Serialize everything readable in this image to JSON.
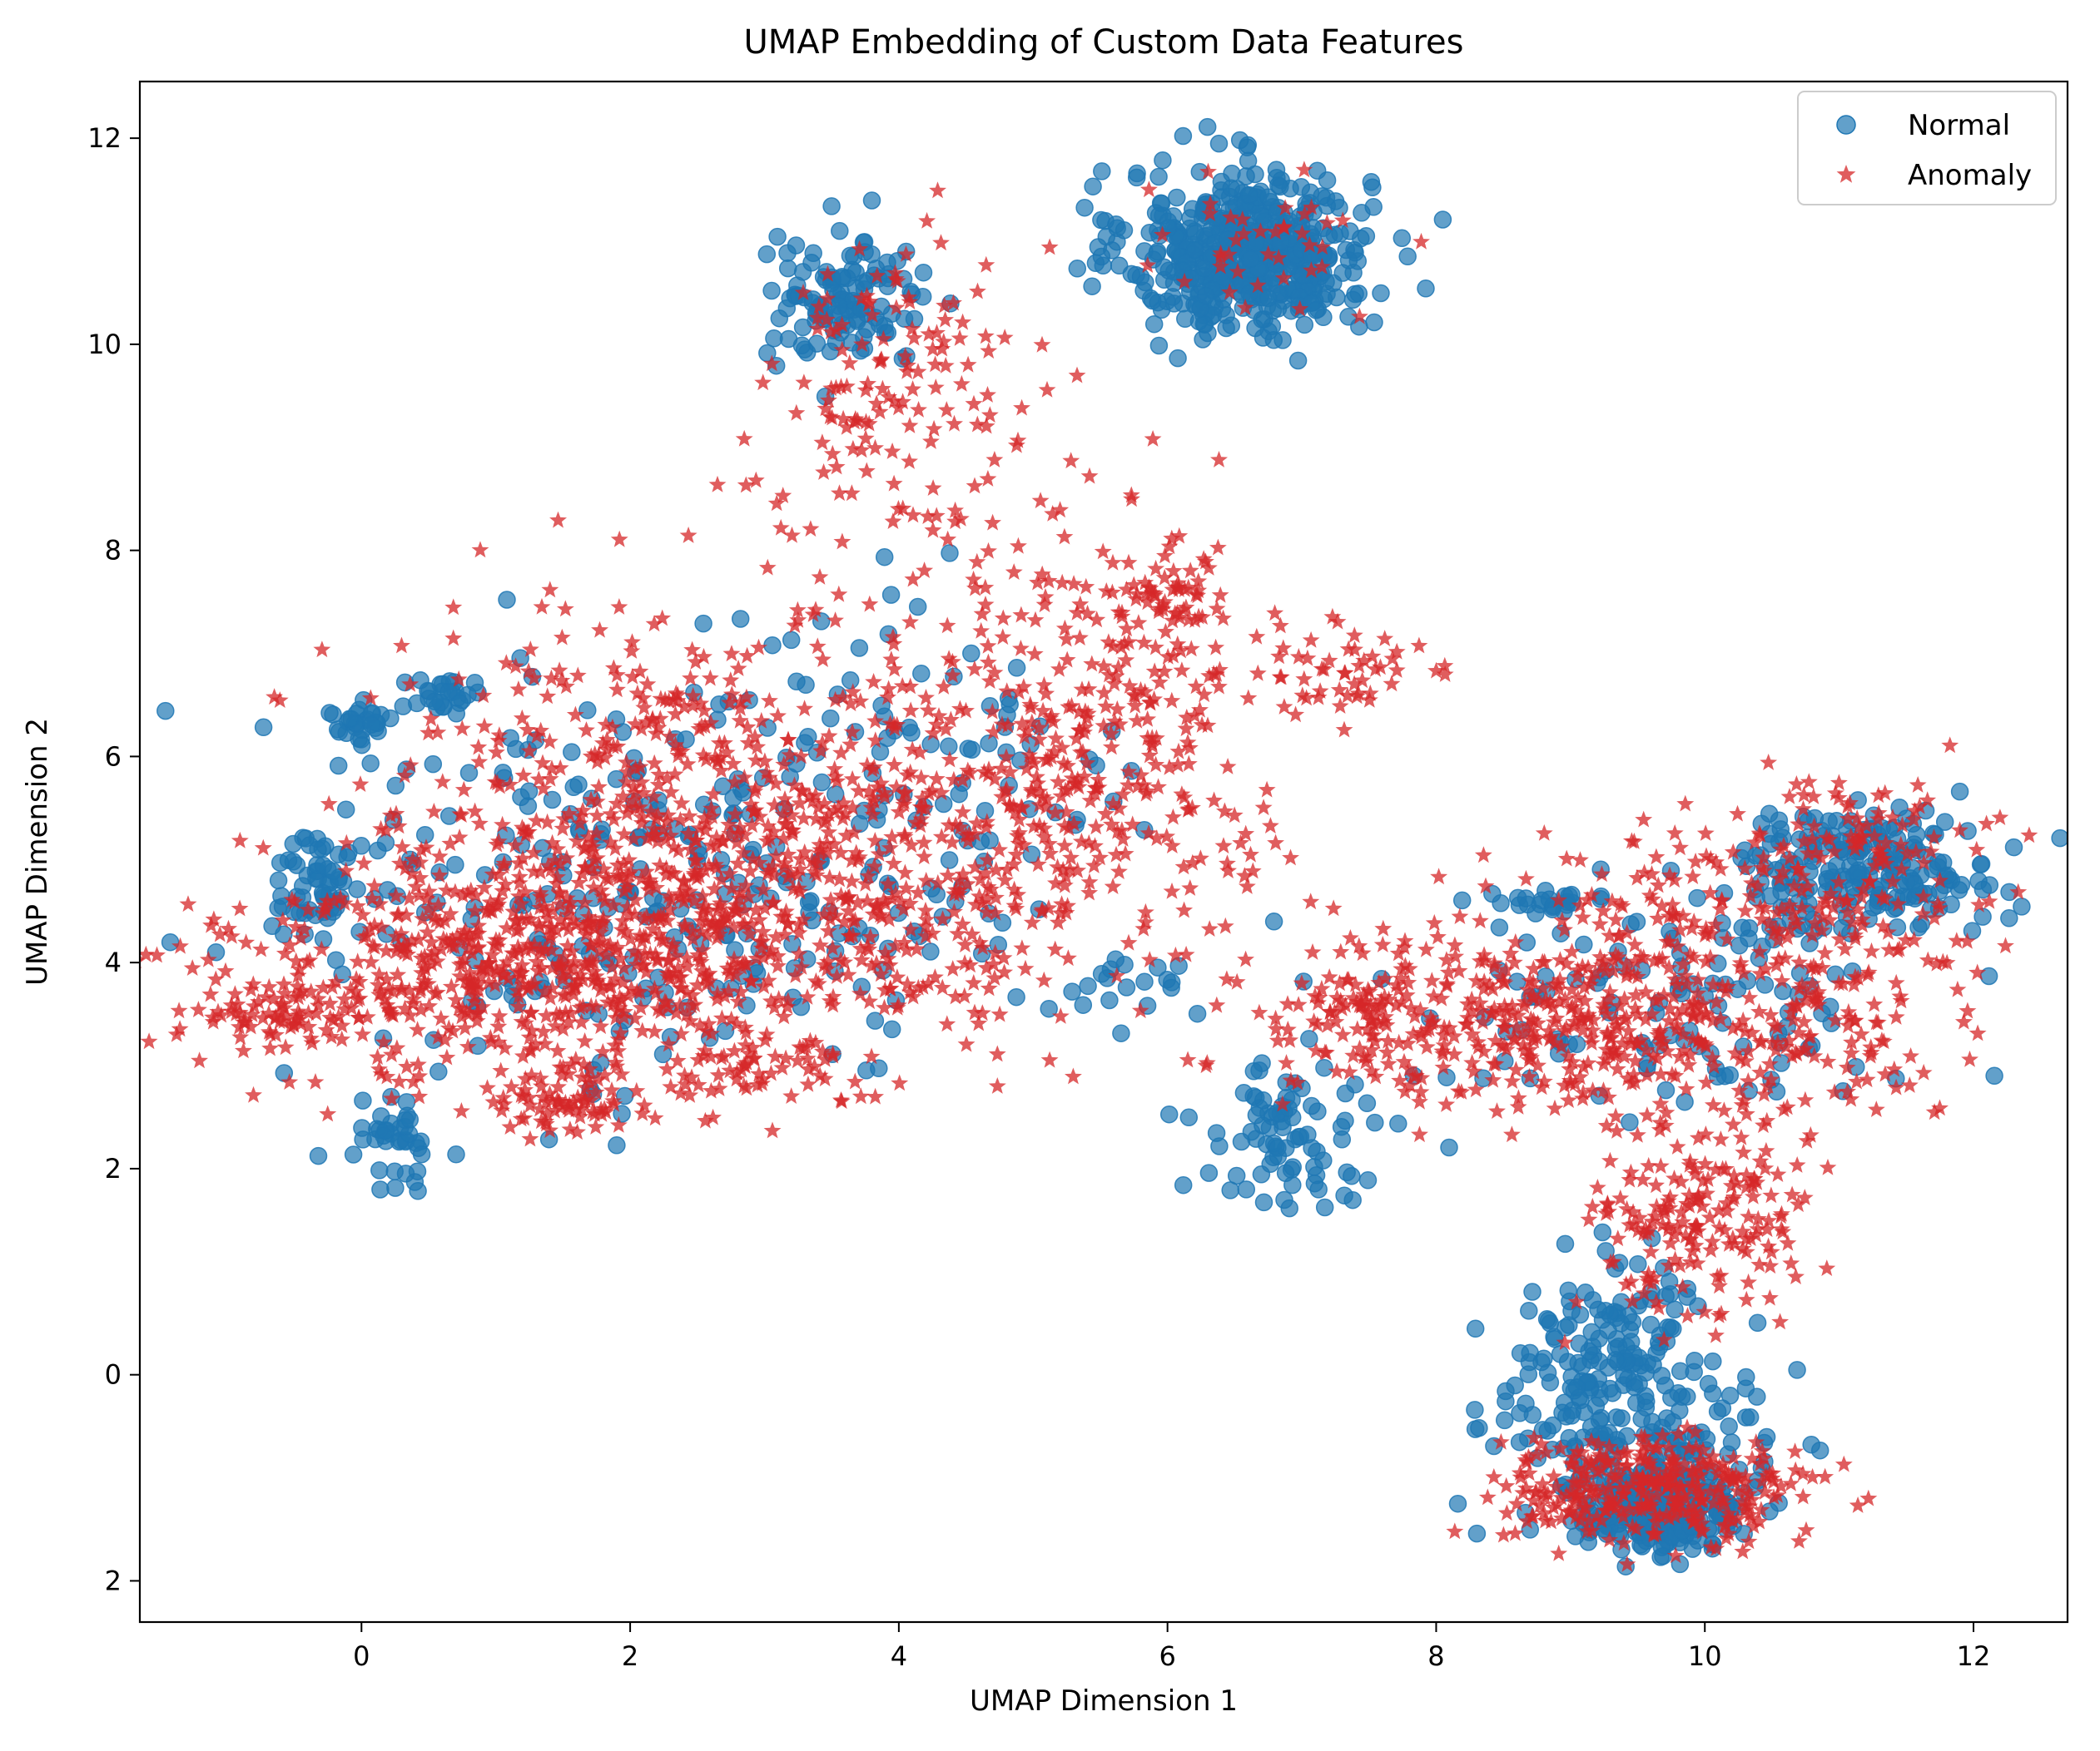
{
  "chart_data": {
    "type": "scatter",
    "title": "UMAP Embedding of Custom Data Features",
    "xlabel": "UMAP Dimension 1",
    "ylabel": "UMAP Dimension 2",
    "xlim": [
      -1.65,
      12.7
    ],
    "ylim": [
      -2.4,
      12.55
    ],
    "x_ticks": [
      0,
      2,
      4,
      6,
      8,
      10,
      12
    ],
    "y_ticks": [
      -2,
      0,
      2,
      4,
      6,
      8,
      10,
      12
    ],
    "x_tick_labels": [
      "0",
      "2",
      "4",
      "6",
      "8",
      "10",
      "12"
    ],
    "y_tick_labels": [
      "\u00022",
      "0",
      "2",
      "4",
      "6",
      "8",
      "10",
      "12"
    ],
    "grid": false,
    "legend_position": "top-right",
    "series": [
      {
        "name": "Normal",
        "marker": "circle",
        "color": "#1f77b4",
        "approximate": true,
        "clusters": [
          {
            "center": [
              6.6,
              10.9
            ],
            "spread": [
              0.45,
              0.4
            ],
            "count": 520
          },
          {
            "center": [
              11.2,
              4.9
            ],
            "spread": [
              0.5,
              0.3
            ],
            "count": 200
          },
          {
            "center": [
              9.7,
              -1.3
            ],
            "spread": [
              0.3,
              0.2
            ],
            "count": 260
          },
          {
            "center": [
              9.4,
              -0.4
            ],
            "spread": [
              0.5,
              0.5
            ],
            "count": 200
          },
          {
            "center": [
              9.3,
              0.6
            ],
            "spread": [
              0.3,
              0.3
            ],
            "count": 60
          },
          {
            "center": [
              3.6,
              10.4
            ],
            "spread": [
              0.3,
              0.3
            ],
            "count": 120
          },
          {
            "center": [
              0.0,
              6.3
            ],
            "spread": [
              0.12,
              0.12
            ],
            "count": 30
          },
          {
            "center": [
              0.6,
              6.6
            ],
            "spread": [
              0.15,
              0.08
            ],
            "count": 25
          },
          {
            "center": [
              -0.3,
              4.8
            ],
            "spread": [
              0.2,
              0.25
            ],
            "count": 60
          },
          {
            "center": [
              0.3,
              2.3
            ],
            "spread": [
              0.15,
              0.2
            ],
            "count": 40
          },
          {
            "center": [
              6.8,
              2.3
            ],
            "spread": [
              0.3,
              0.35
            ],
            "count": 70
          },
          {
            "center": [
              8.8,
              4.6
            ],
            "spread": [
              0.3,
              0.06
            ],
            "count": 20
          },
          {
            "center": [
              1.8,
              4.7
            ],
            "spread": [
              1.2,
              1.1
            ],
            "count": 220
          },
          {
            "center": [
              4.0,
              5.4
            ],
            "spread": [
              0.9,
              1.2
            ],
            "count": 120
          },
          {
            "center": [
              9.5,
              3.6
            ],
            "spread": [
              1.0,
              0.6
            ],
            "count": 120
          },
          {
            "center": [
              5.8,
              3.8
            ],
            "spread": [
              0.3,
              0.15
            ],
            "count": 20
          },
          {
            "center": [
              7.2,
              1.8
            ],
            "spread": [
              0.3,
              0.1
            ],
            "count": 12
          }
        ]
      },
      {
        "name": "Anomaly",
        "marker": "star",
        "color": "#d62728",
        "approximate": true,
        "clusters": [
          {
            "center": [
              1.2,
              4.0
            ],
            "spread": [
              1.1,
              0.6
            ],
            "count": 650
          },
          {
            "center": [
              3.6,
              5.0
            ],
            "spread": [
              1.2,
              0.9
            ],
            "count": 600
          },
          {
            "center": [
              2.2,
              5.8
            ],
            "spread": [
              1.0,
              0.9
            ],
            "count": 300
          },
          {
            "center": [
              4.0,
              9.6
            ],
            "spread": [
              0.5,
              0.8
            ],
            "count": 150
          },
          {
            "center": [
              5.6,
              6.4
            ],
            "spread": [
              0.7,
              0.9
            ],
            "count": 250
          },
          {
            "center": [
              6.0,
              7.6
            ],
            "spread": [
              0.3,
              0.2
            ],
            "count": 50
          },
          {
            "center": [
              7.3,
              6.8
            ],
            "spread": [
              0.3,
              0.2
            ],
            "count": 45
          },
          {
            "center": [
              9.4,
              3.4
            ],
            "spread": [
              1.1,
              0.45
            ],
            "count": 450
          },
          {
            "center": [
              10.6,
              4.5
            ],
            "spread": [
              0.9,
              0.5
            ],
            "count": 220
          },
          {
            "center": [
              10.0,
              1.5
            ],
            "spread": [
              0.4,
              0.5
            ],
            "count": 180
          },
          {
            "center": [
              9.6,
              -1.1
            ],
            "spread": [
              0.55,
              0.25
            ],
            "count": 320
          },
          {
            "center": [
              7.6,
              3.5
            ],
            "spread": [
              0.6,
              0.4
            ],
            "count": 120
          },
          {
            "center": [
              -0.6,
              3.5
            ],
            "spread": [
              0.3,
              0.15
            ],
            "count": 60
          },
          {
            "center": [
              1.5,
              2.6
            ],
            "spread": [
              0.3,
              0.12
            ],
            "count": 60
          },
          {
            "center": [
              2.8,
              2.9
            ],
            "spread": [
              0.4,
              0.2
            ],
            "count": 50
          },
          {
            "center": [
              6.6,
              10.9
            ],
            "spread": [
              0.45,
              0.35
            ],
            "count": 40
          },
          {
            "center": [
              11.3,
              5.4
            ],
            "spread": [
              0.35,
              0.2
            ],
            "count": 40
          }
        ]
      }
    ]
  }
}
